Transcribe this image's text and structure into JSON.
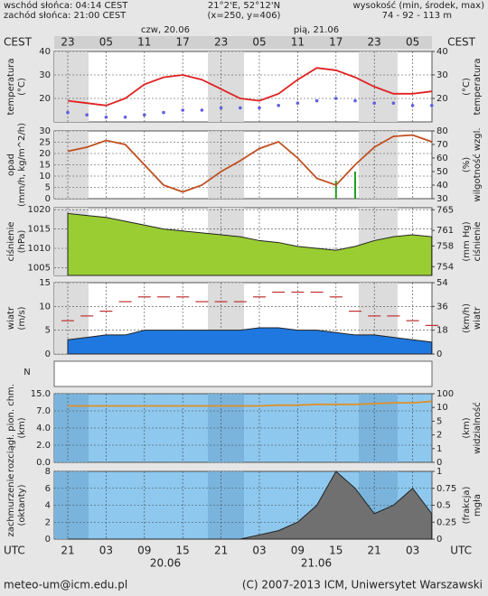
{
  "header": {
    "sunrise": "wschód słońca: 04:14 CEST",
    "sunset": "zachód słońca: 21:00 CEST",
    "coords": "21°2'E, 52°12'N",
    "grid": "(x=250, y=406)",
    "height_label": "wysokość (min, środek, max)",
    "height_values": "74 - 92 - 113 m",
    "day1": "czw, 20.06",
    "day2": "pią, 21.06",
    "tz": "CEST",
    "cest_hours": [
      "23",
      "05",
      "11",
      "17",
      "23",
      "05",
      "11",
      "17",
      "23",
      "05"
    ]
  },
  "footer": {
    "utc": "UTC",
    "date1": "20.06",
    "date2": "21.06",
    "email": "meteo-um@icm.edu.pl",
    "copyright": "(C) 2007-2013 ICM, Uniwersytet Warszawski"
  },
  "chart_data": [
    {
      "type": "line",
      "ylabel": [
        "temperatura",
        "(°C)"
      ],
      "y2label": [
        "(°C)",
        "temperatura"
      ],
      "categories": [
        "21",
        null,
        "03",
        null,
        "09",
        null,
        "15",
        null,
        "21",
        null,
        "03",
        null,
        "09",
        null,
        "15",
        null,
        "21",
        null,
        "03",
        null
      ],
      "ylim": [
        10,
        40
      ],
      "yticks": [
        20,
        30,
        40
      ],
      "y2lim": [
        10,
        40
      ],
      "y2ticks": [
        20,
        30,
        40
      ],
      "series": [
        {
          "name": "temperatura",
          "type": "line",
          "color": "#e02020",
          "values": [
            19,
            18,
            17,
            20,
            26,
            29,
            30,
            28,
            24,
            20,
            19,
            22,
            28,
            33,
            32,
            29,
            25,
            22,
            22,
            23
          ]
        },
        {
          "name": "punkt rosy",
          "type": "dots",
          "color": "#6060e0",
          "values": [
            14,
            13,
            12,
            12,
            13,
            14,
            15,
            15,
            16,
            16,
            16,
            17,
            18,
            19,
            20,
            19,
            18,
            18,
            17,
            17
          ]
        }
      ]
    },
    {
      "type": "line",
      "ylabel": [
        "opad",
        "(mm/h, kg/m^2/h)"
      ],
      "y2label": [
        "(%)",
        "wilgotność wzgl."
      ],
      "categories": [
        "21",
        null,
        "03",
        null,
        "09",
        null,
        "15",
        null,
        "21",
        null,
        "03",
        null,
        "09",
        null,
        "15",
        null,
        "21",
        null,
        "03",
        null
      ],
      "ylim": [
        0,
        30
      ],
      "yticks": [
        0,
        5,
        10,
        15,
        20,
        25,
        30
      ],
      "y2lim": [
        30,
        80
      ],
      "y2ticks": [
        30,
        40,
        50,
        60,
        70,
        80
      ],
      "series": [
        {
          "name": "opad",
          "type": "bar",
          "color": "#20a020",
          "values": [
            0,
            0,
            0,
            0,
            0,
            0,
            0,
            0,
            0,
            0,
            0,
            0,
            0,
            0,
            8,
            12,
            0,
            0,
            0,
            0
          ]
        },
        {
          "name": "wilgotność",
          "type": "line",
          "axis": "y2",
          "color": "#c05020",
          "values": [
            65,
            68,
            73,
            70,
            55,
            40,
            35,
            40,
            50,
            58,
            67,
            72,
            60,
            45,
            40,
            55,
            68,
            76,
            77,
            72
          ]
        }
      ]
    },
    {
      "type": "line",
      "ylabel": [
        "ciśnienie",
        "(hPa)"
      ],
      "y2label": [
        "(mm Hg)",
        "ciśnienie"
      ],
      "categories": [
        "21",
        null,
        "03",
        null,
        "09",
        null,
        "15",
        null,
        "21",
        null,
        "03",
        null,
        "09",
        null,
        "15",
        null,
        "21",
        null,
        "03",
        null
      ],
      "ylim": [
        1003,
        1020.5
      ],
      "yticks": [
        1005,
        1010,
        1015,
        1020
      ],
      "y2lim": [
        752.3,
        765.4
      ],
      "y2ticks": [
        754,
        758,
        761,
        765
      ],
      "series": [
        {
          "name": "ciśnienie",
          "type": "area",
          "color": "#9acd32",
          "values": [
            1019,
            1018.5,
            1018,
            1017,
            1016,
            1015,
            1014.5,
            1014,
            1013.5,
            1013,
            1012,
            1011.5,
            1010.5,
            1010,
            1009.5,
            1010.5,
            1012,
            1013,
            1013.5,
            1013
          ]
        }
      ]
    },
    {
      "type": "line",
      "ylabel": [
        "wiatr",
        "(m/s)"
      ],
      "y2label": [
        "(km/h)",
        "wiatr"
      ],
      "categories": [
        "21",
        null,
        "03",
        null,
        "09",
        null,
        "15",
        null,
        "21",
        null,
        "03",
        null,
        "09",
        null,
        "15",
        null,
        "21",
        null,
        "03",
        null
      ],
      "ylim": [
        0,
        15
      ],
      "yticks": [
        0,
        5,
        10,
        15
      ],
      "y2lim": [
        0,
        54
      ],
      "y2ticks": [
        0,
        18,
        36,
        54
      ],
      "series": [
        {
          "name": "porywy",
          "type": "dash",
          "color": "#c03030",
          "values": [
            7,
            8,
            9,
            11,
            12,
            12,
            12,
            11,
            11,
            11,
            12,
            13,
            13,
            13,
            12,
            9,
            8,
            8,
            7,
            6
          ]
        },
        {
          "name": "wiatr",
          "type": "area",
          "color": "#1e78e0",
          "values": [
            3,
            3.5,
            4,
            4,
            5,
            5,
            5,
            5,
            5,
            5,
            5.5,
            5.5,
            5,
            5,
            4.5,
            4,
            4,
            3.5,
            3,
            2.5
          ]
        }
      ]
    },
    {
      "type": "line",
      "ylabel": [
        "rozciągł. pion. chm.",
        "(km)"
      ],
      "y2label": [
        "(km)",
        "widzialność"
      ],
      "yscale": "piecewise",
      "categories": [
        "21",
        null,
        "03",
        null,
        "09",
        null,
        "15",
        null,
        "21",
        null,
        "03",
        null,
        "09",
        null,
        "15",
        null,
        "21",
        null,
        "03",
        null
      ],
      "ylim": [
        0,
        15
      ],
      "yticks": [
        {
          "value": 0,
          "label": "0.0"
        },
        {
          "value": 2,
          "label": "2.0"
        },
        {
          "value": 4,
          "label": "4.0"
        },
        {
          "value": 7,
          "label": "7.0"
        },
        {
          "value": 15,
          "label": "15.0"
        }
      ],
      "y2lim": [
        0,
        100
      ],
      "y2ticks": [
        0,
        1,
        2,
        5,
        10,
        100
      ],
      "series": [
        {
          "name": "widzialność",
          "type": "line",
          "axis": "y2",
          "color": "#e0902a",
          "values": [
            20,
            20,
            20,
            20,
            20,
            20,
            20,
            20,
            20,
            20,
            20,
            25,
            25,
            30,
            30,
            30,
            35,
            40,
            40,
            50
          ]
        }
      ]
    },
    {
      "type": "line",
      "ylabel": [
        "zachmurzenie",
        "(oktanty)"
      ],
      "y2label": [
        "(frakcja)",
        "mgła"
      ],
      "categories": [
        "21",
        null,
        "03",
        null,
        "09",
        null,
        "15",
        null,
        "21",
        null,
        "03",
        null,
        "09",
        null,
        "15",
        null,
        "21",
        null,
        "03",
        null
      ],
      "ylim": [
        0,
        8
      ],
      "yticks": [
        0,
        2,
        4,
        6,
        8
      ],
      "y2lim": [
        0,
        1
      ],
      "y2ticks": [
        0,
        0.25,
        0.5,
        0.75,
        1
      ],
      "series": [
        {
          "name": "zachmurzenie",
          "type": "area",
          "color": "#707070",
          "values": [
            0,
            0,
            0,
            0,
            0,
            0,
            0,
            0,
            0,
            0,
            0.5,
            1,
            2,
            4,
            8,
            6,
            3,
            4,
            6,
            3
          ]
        }
      ]
    }
  ]
}
